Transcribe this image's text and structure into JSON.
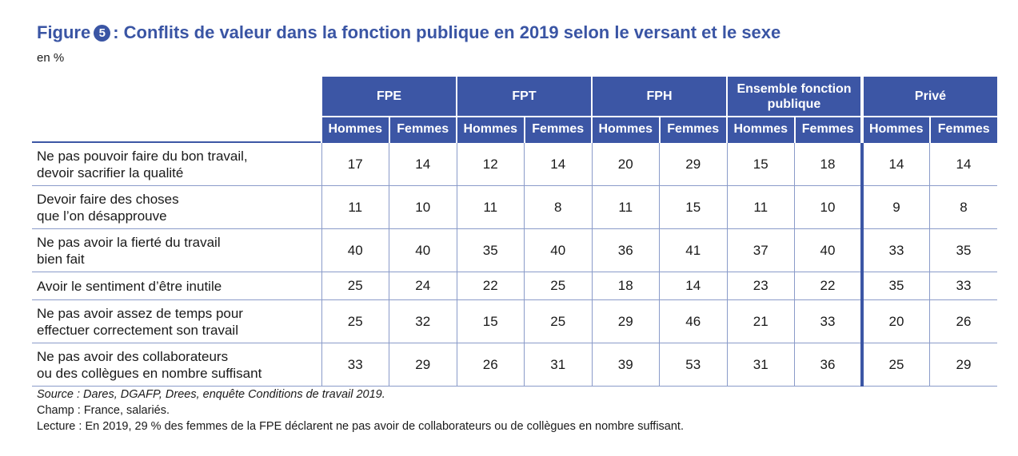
{
  "title": {
    "prefix": "Figure",
    "number": "5",
    "text": ": Conflits de valeur dans la fonction publique en 2019 selon le versant et le sexe"
  },
  "unit": "en %",
  "table": {
    "groups": [
      "FPE",
      "FPT",
      "FPH",
      "Ensemble fonction publique",
      "Privé"
    ],
    "subheaders": [
      "Hommes",
      "Femmes"
    ],
    "rows": [
      {
        "label": [
          "Ne pas pouvoir faire du bon travail,",
          "devoir sacrifier la qualité"
        ],
        "values": [
          "17",
          "14",
          "12",
          "14",
          "20",
          "29",
          "15",
          "18",
          "14",
          "14"
        ]
      },
      {
        "label": [
          "Devoir faire des choses",
          "que l’on désapprouve"
        ],
        "values": [
          "11",
          "10",
          "11",
          "8",
          "11",
          "15",
          "11",
          "10",
          "9",
          "8"
        ]
      },
      {
        "label": [
          "Ne pas avoir la fierté du travail",
          "bien fait"
        ],
        "values": [
          "40",
          "40",
          "35",
          "40",
          "36",
          "41",
          "37",
          "40",
          "33",
          "35"
        ]
      },
      {
        "label": [
          "Avoir le sentiment d’être inutile"
        ],
        "values": [
          "25",
          "24",
          "22",
          "25",
          "18",
          "14",
          "23",
          "22",
          "35",
          "33"
        ]
      },
      {
        "label": [
          "Ne pas avoir assez de temps pour",
          "effectuer correctement son travail"
        ],
        "values": [
          "25",
          "32",
          "15",
          "25",
          "29",
          "46",
          "21",
          "33",
          "20",
          "26"
        ]
      },
      {
        "label": [
          "Ne pas avoir des collaborateurs",
          "ou des collègues en nombre suffisant"
        ],
        "values": [
          "33",
          "29",
          "26",
          "31",
          "39",
          "53",
          "31",
          "36",
          "25",
          "29"
        ]
      }
    ]
  },
  "notes": {
    "source": "Source : Dares, DGAFP, Drees, enquête Conditions de travail 2019.",
    "champ": "Champ : France, salariés.",
    "lecture": "Lecture : En 2019, 29 % des femmes de la FPE déclarent ne pas avoir de collaborateurs ou de collègues en nombre suffisant."
  },
  "colors": {
    "header": "#3c56a5",
    "title": "#3a55a4",
    "rule": "#8a9bc9"
  }
}
